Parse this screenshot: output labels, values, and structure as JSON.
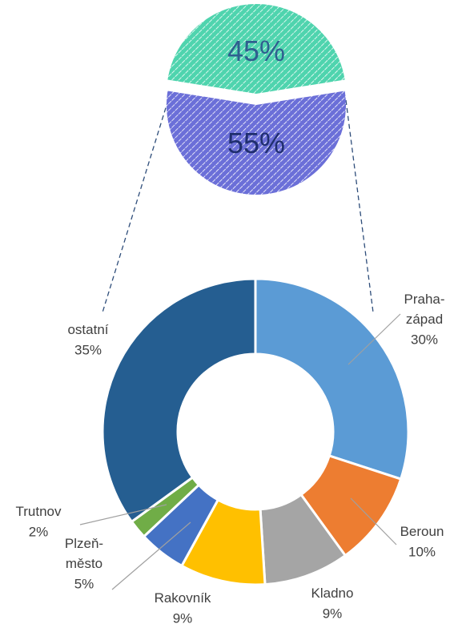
{
  "chart_data": [
    {
      "type": "pie",
      "values": [
        45,
        55
      ],
      "value_labels": [
        "45%",
        "55%"
      ],
      "colors": [
        "#4fd4ae",
        "#6b6fd8"
      ],
      "hatch": true,
      "exploded": true
    },
    {
      "type": "donut",
      "categories": [
        "Praha-západ",
        "Beroun",
        "Kladno",
        "Rakovník",
        "Plzeň-město",
        "Trutnov",
        "ostatní"
      ],
      "values": [
        30,
        10,
        9,
        9,
        5,
        2,
        35
      ],
      "value_labels": [
        "30%",
        "10%",
        "9%",
        "9%",
        "5%",
        "2%",
        "35%"
      ],
      "colors": [
        "#5b9bd5",
        "#ed7d31",
        "#a5a5a5",
        "#ffc000",
        "#4472c4",
        "#70ad47",
        "#255e91"
      ]
    }
  ]
}
